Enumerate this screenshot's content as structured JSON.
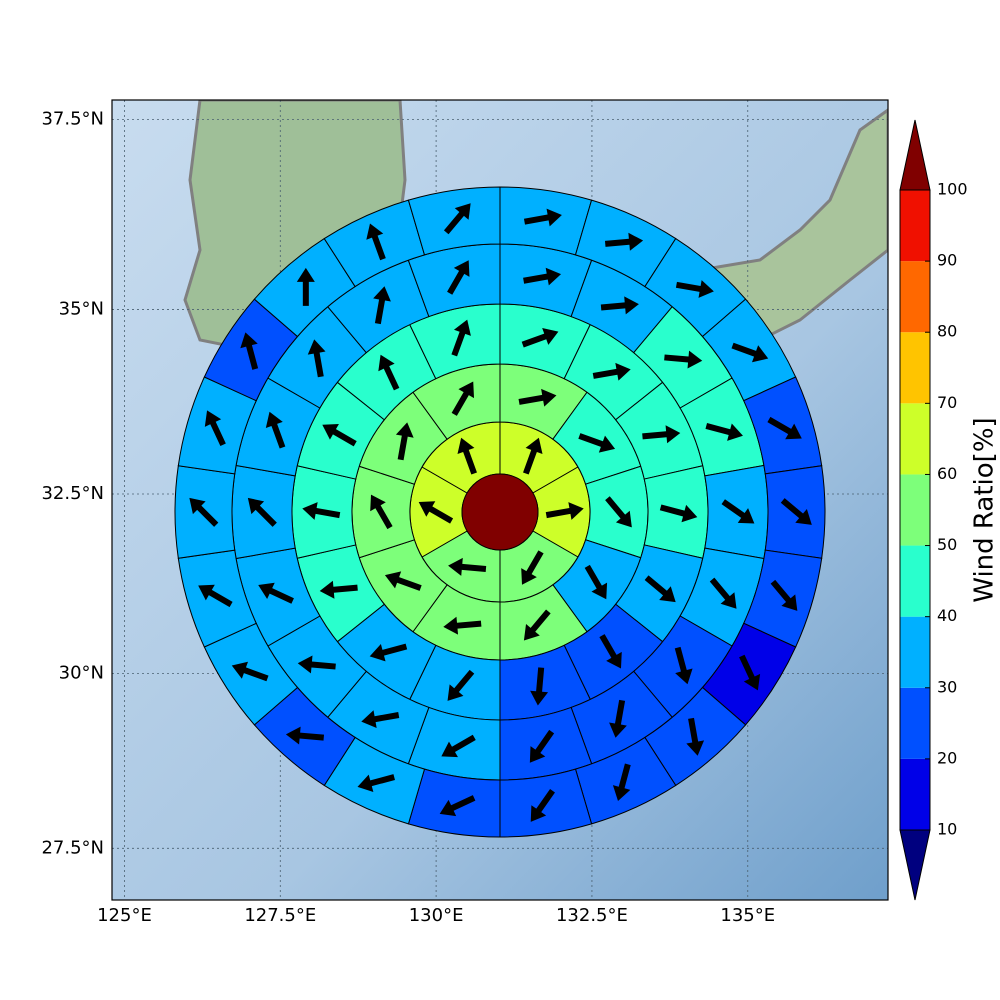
{
  "chart_data": {
    "type": "polar-wind-map",
    "xlim": [
      124.8,
      137.25
    ],
    "ylim": [
      26.75,
      37.75
    ],
    "xticks": [
      {
        "value": 125,
        "label": "125°E"
      },
      {
        "value": 127.5,
        "label": "127.5°E"
      },
      {
        "value": 130,
        "label": "130°E"
      },
      {
        "value": 132.5,
        "label": "132.5°E"
      },
      {
        "value": 135,
        "label": "135°E"
      }
    ],
    "yticks": [
      {
        "value": 27.5,
        "label": "27.5°N"
      },
      {
        "value": 30,
        "label": "30°N"
      },
      {
        "value": 32.5,
        "label": "32.5°N"
      },
      {
        "value": 35,
        "label": "35°N"
      },
      {
        "value": 37.5,
        "label": "37.5°N"
      }
    ],
    "grid": true,
    "center_value": 105,
    "rings": [
      {
        "values": [
          65,
          65,
          55,
          55,
          65,
          60
        ],
        "directions": [
          20,
          80,
          210,
          275,
          300,
          340
        ]
      },
      {
        "values": [
          55,
          45,
          45,
          35,
          55,
          55,
          55,
          55,
          55,
          55
        ],
        "directions": [
          80,
          110,
          140,
          150,
          220,
          265,
          290,
          330,
          10,
          30
        ]
      },
      {
        "values": [
          45,
          45,
          45,
          45,
          35,
          25,
          25,
          35,
          35,
          45,
          45,
          45,
          45,
          45
        ],
        "directions": [
          70,
          80,
          85,
          105,
          130,
          150,
          185,
          220,
          255,
          265,
          280,
          300,
          335,
          20
        ]
      },
      {
        "values": [
          35,
          35,
          45,
          45,
          35,
          35,
          25,
          25,
          25,
          35,
          35,
          35,
          35,
          35,
          35,
          35,
          35,
          35
        ],
        "directions": [
          80,
          85,
          95,
          105,
          125,
          140,
          165,
          190,
          215,
          240,
          260,
          275,
          295,
          315,
          340,
          350,
          10,
          30
        ]
      },
      {
        "values": [
          35,
          35,
          35,
          35,
          25,
          25,
          25,
          15,
          25,
          25,
          25,
          25,
          35,
          25,
          35,
          35,
          35,
          35,
          25,
          35,
          35,
          35
        ],
        "directions": [
          80,
          85,
          100,
          110,
          120,
          130,
          140,
          155,
          170,
          195,
          215,
          245,
          255,
          275,
          290,
          300,
          315,
          335,
          345,
          0,
          340,
          40
        ]
      }
    ],
    "colorbar": {
      "label": "Wind Ratio[%]",
      "ticks": [
        10,
        20,
        30,
        40,
        50,
        60,
        70,
        80,
        90,
        100
      ],
      "colors": [
        "#00007f",
        "#0000e8",
        "#0050ff",
        "#00b0ff",
        "#29ffcd",
        "#7dff7a",
        "#cdff29",
        "#ffc400",
        "#ff6800",
        "#f01000",
        "#800000"
      ]
    }
  }
}
